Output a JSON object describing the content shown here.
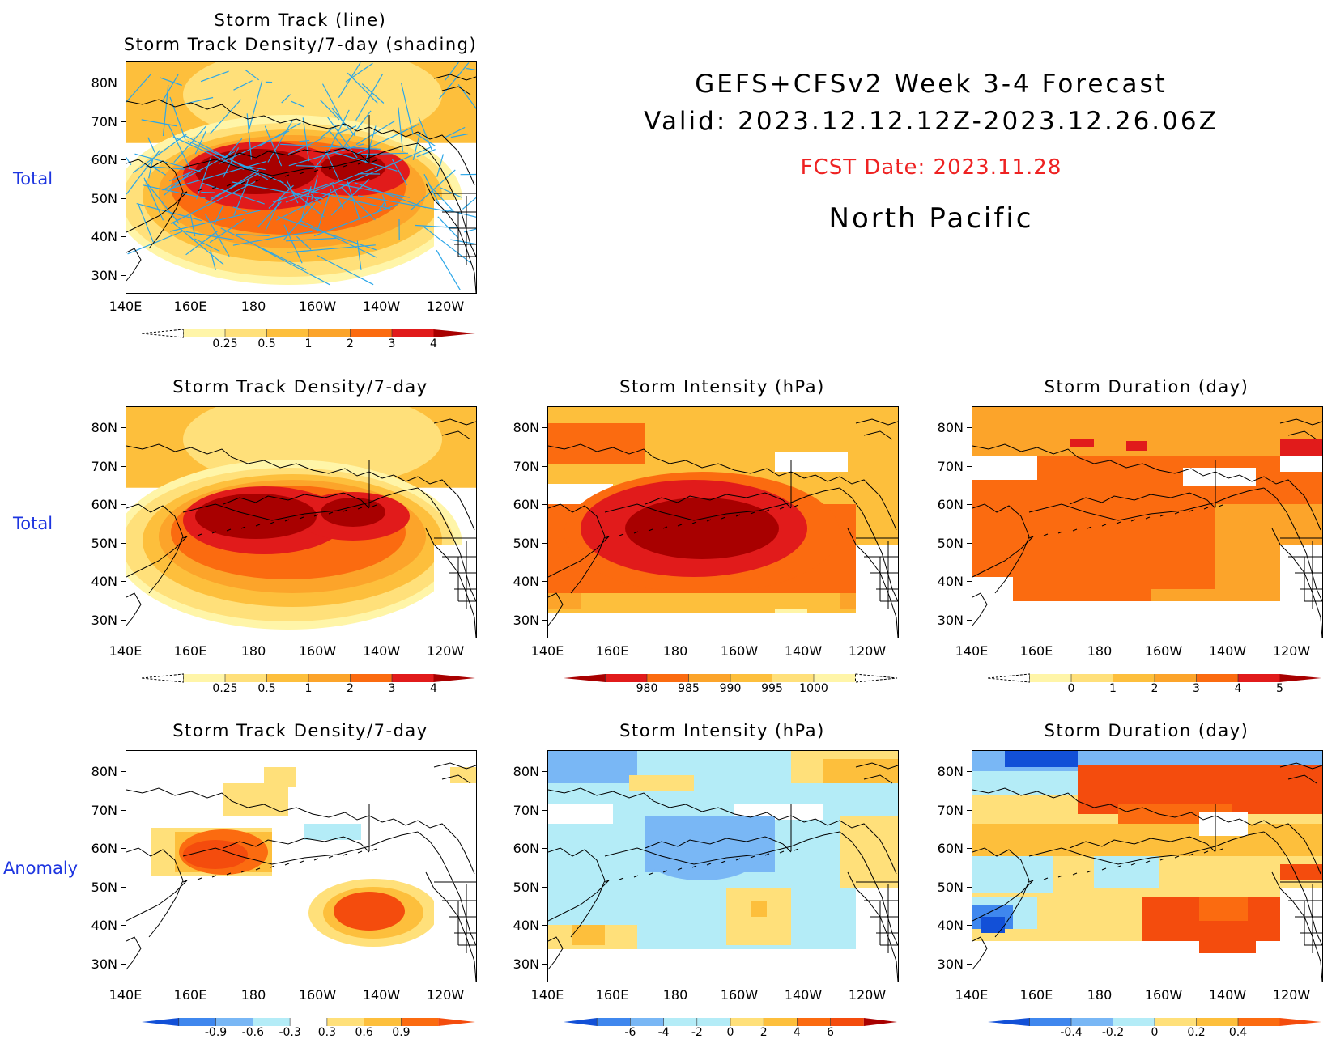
{
  "header": {
    "line1": "GEFS+CFSv2 Week 3-4 Forecast",
    "line2": "Valid: 2023.12.12.12Z-2023.12.26.06Z",
    "fcst_date": "FCST Date: 2023.11.28",
    "region": "North Pacific"
  },
  "row_labels": {
    "row1": "Total",
    "row2": "Total",
    "row3": "Anomaly"
  },
  "axes": {
    "y_ticks": [
      "80N",
      "70N",
      "60N",
      "50N",
      "40N",
      "30N"
    ],
    "x_ticks": [
      "140E",
      "160E",
      "180",
      "160W",
      "140W",
      "120W"
    ]
  },
  "colors": {
    "lightyellow": "#fff5a8",
    "yellow": "#ffe07a",
    "gold": "#fdbf3c",
    "orange": "#fca42a",
    "darkorange": "#fb6b10",
    "red": "#e11b1b",
    "darkred": "#a80000",
    "lightblue": "#b4ecf7",
    "blue": "#79b7f5",
    "midblue": "#3f87ee",
    "darkblue": "#1250d7",
    "track_line": "#2ba6e8"
  },
  "chart_data": [
    {
      "id": "p1",
      "type": "heatmap",
      "title": "Storm Track (line)\nStorm Track Density/7-day (shading)",
      "colorbar": {
        "labels": [
          "0.25",
          "0.5",
          "1",
          "2",
          "3",
          "4"
        ]
      }
    },
    {
      "id": "p2",
      "type": "heatmap",
      "title": "Storm Track Density/7-day",
      "colorbar": {
        "labels": [
          "0.25",
          "0.5",
          "1",
          "2",
          "3",
          "4"
        ]
      }
    },
    {
      "id": "p3",
      "type": "heatmap",
      "title": "Storm Intensity (hPa)",
      "colorbar": {
        "labels": [
          "980",
          "985",
          "990",
          "995",
          "1000"
        ]
      }
    },
    {
      "id": "p4",
      "type": "heatmap",
      "title": "Storm Duration (day)",
      "colorbar": {
        "labels": [
          "0",
          "1",
          "2",
          "3",
          "4",
          "5"
        ]
      }
    },
    {
      "id": "p5",
      "type": "heatmap",
      "title": "Storm Track Density/7-day",
      "colorbar": {
        "labels": [
          "-0.9",
          "-0.6",
          "-0.3",
          "0.3",
          "0.6",
          "0.9"
        ]
      }
    },
    {
      "id": "p6",
      "type": "heatmap",
      "title": "Storm Intensity (hPa)",
      "colorbar": {
        "labels": [
          "-6",
          "-4",
          "-2",
          "0",
          "2",
          "4",
          "6"
        ]
      }
    },
    {
      "id": "p7",
      "type": "heatmap",
      "title": "Storm Duration (day)",
      "colorbar": {
        "labels": [
          "-0.4",
          "-0.2",
          "0",
          "0.2",
          "0.4"
        ]
      }
    }
  ]
}
